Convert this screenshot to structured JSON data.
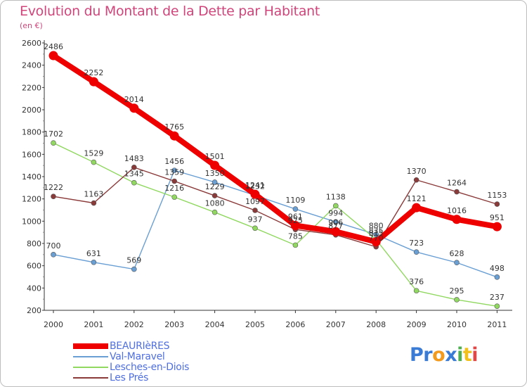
{
  "title": "Evolution du Montant de la Dette par Habitant",
  "subtitle": "(en €)",
  "logo": {
    "letters": [
      {
        "ch": "P",
        "color": "#3a7bd5"
      },
      {
        "ch": "r",
        "color": "#3a7bd5"
      },
      {
        "ch": "o",
        "color": "#f29a1d"
      },
      {
        "ch": "x",
        "color": "#3a7bd5"
      },
      {
        "ch": "i",
        "color": "#4caf50"
      },
      {
        "ch": "t",
        "color": "#f2c01d"
      },
      {
        "ch": "i",
        "color": "#e04848"
      }
    ]
  },
  "chart_data": {
    "type": "line",
    "x": [
      "2000",
      "2001",
      "2002",
      "2003",
      "2004",
      "2005",
      "2006",
      "2007",
      "2008",
      "2009",
      "2010",
      "2011"
    ],
    "ylim": [
      200,
      2600
    ],
    "yticks": [
      200,
      400,
      600,
      800,
      1000,
      1200,
      1400,
      1600,
      1800,
      2000,
      2200,
      2400,
      2600
    ],
    "grid": false,
    "legend_position": "bottom-left",
    "series": [
      {
        "name": "BEAURIèRES",
        "color": "#ee0000",
        "values": [
          2486,
          2252,
          2014,
          1765,
          1501,
          1241,
          961,
          906,
          815,
          1121,
          1016,
          951
        ],
        "labels": [
          "2486",
          "2252",
          "2014",
          "1765",
          "1501",
          "1241",
          "961",
          "906",
          "815",
          "1121",
          "1016",
          "951"
        ]
      },
      {
        "name": "Val-Maravel",
        "color": "#6a9fd4",
        "values": [
          700,
          631,
          569,
          1456,
          1350,
          1232,
          1109,
          994,
          880,
          723,
          628,
          498
        ],
        "labels": [
          "700",
          "631",
          "569",
          "1456",
          "1350",
          "1232",
          "1109",
          "994",
          "880",
          "723",
          "628",
          "498"
        ]
      },
      {
        "name": "Lesches-en-Diois",
        "color": "#90d860",
        "values": [
          1702,
          1529,
          1345,
          1216,
          1080,
          937,
          785,
          1138,
          835,
          376,
          295,
          237
        ],
        "labels": [
          "1702",
          "1529",
          "1345",
          "1216",
          "1080",
          "937",
          "785",
          "1138",
          "835",
          "376",
          "295",
          "237"
        ]
      },
      {
        "name": "Les Prés",
        "color": "#8b3a3a",
        "values": [
          1222,
          1163,
          1483,
          1359,
          1229,
          1097,
          925,
          877,
          770,
          1370,
          1264,
          1153
        ],
        "labels": [
          "1222",
          "1163",
          "1483",
          "1359",
          "1229",
          "1097",
          "925",
          "877",
          "770",
          "1370",
          "1264",
          "1153"
        ]
      }
    ]
  }
}
